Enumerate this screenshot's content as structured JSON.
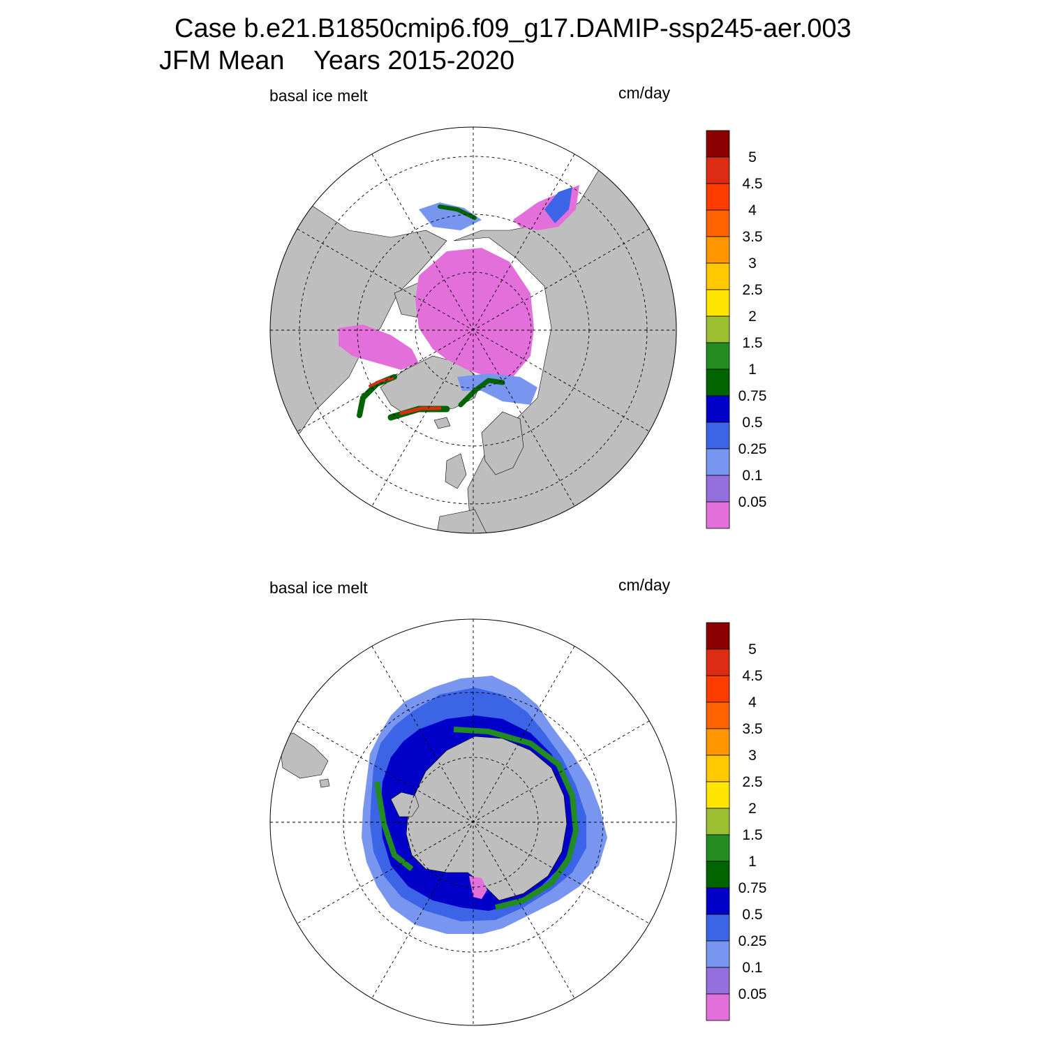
{
  "header": {
    "line1": "Case b.e21.B1850cmip6.f09_g17.DAMIP-ssp245-aer.003",
    "line2": "JFM Mean    Years 2015-2020"
  },
  "panels": [
    {
      "id": "north",
      "field_label": "basal ice melt",
      "units_label": "cm/day",
      "hemisphere": "Northern"
    },
    {
      "id": "south",
      "field_label": "basal ice melt",
      "units_label": "cm/day",
      "hemisphere": "Southern"
    }
  ],
  "colorbar": {
    "labels": [
      "5",
      "4.5",
      "4",
      "3.5",
      "3",
      "2.5",
      "2",
      "1.5",
      "1",
      "0.75",
      "0.5",
      "0.25",
      "0.1",
      "0.05"
    ],
    "colors": [
      "#8b0000",
      "#dc2d14",
      "#ff3c00",
      "#ff6400",
      "#ff9600",
      "#ffc800",
      "#ffe600",
      "#9cbf32",
      "#228b22",
      "#006400",
      "#0000c8",
      "#3c64e6",
      "#7896f0",
      "#9370db",
      "#e36fdb"
    ]
  },
  "colors": {
    "land": "#bebebe",
    "background": "#ffffff",
    "low_melt": "#e36fdb"
  }
}
